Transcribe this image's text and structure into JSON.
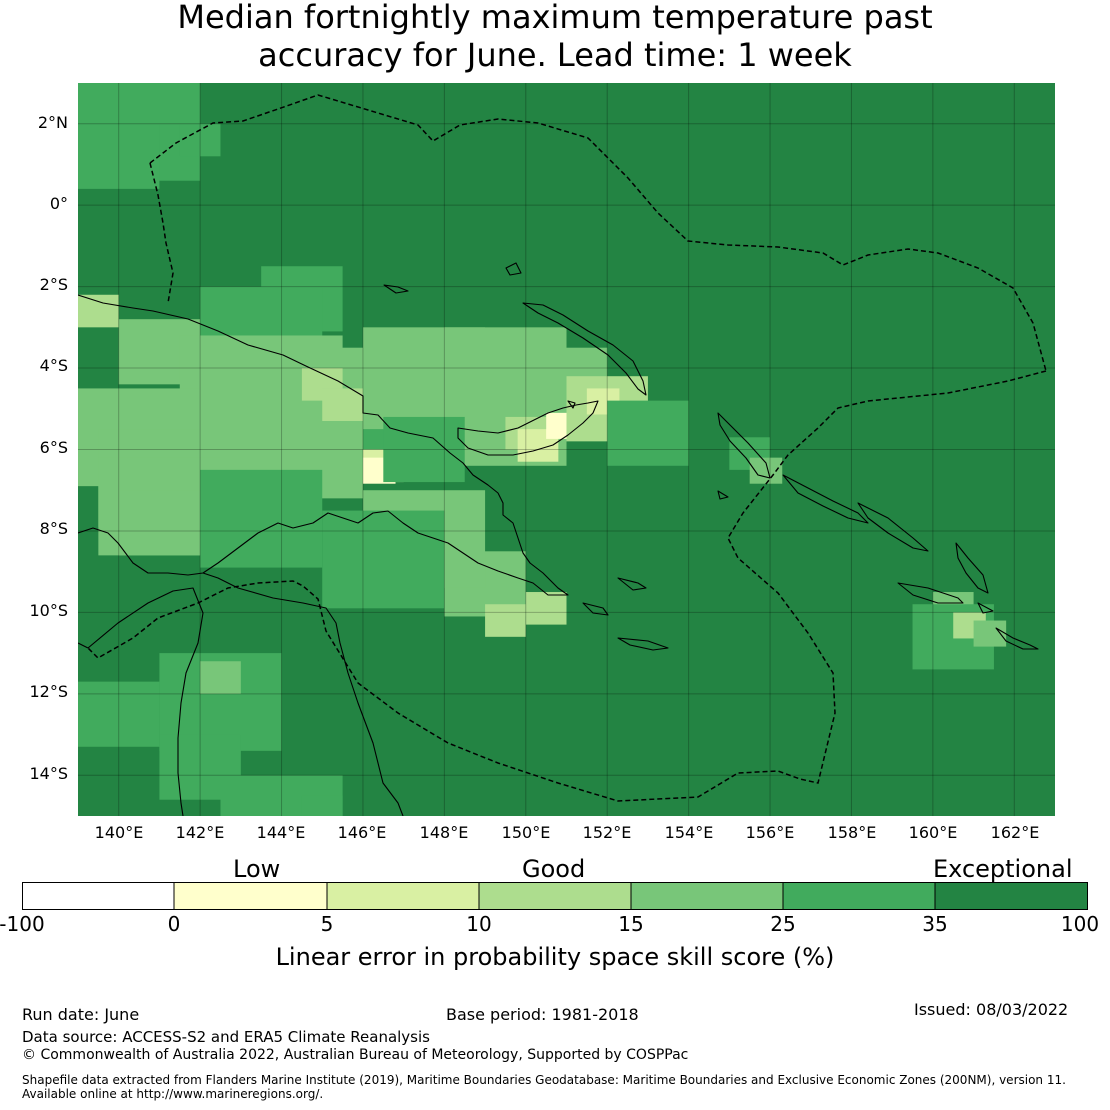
{
  "title": {
    "line1": "Median fortnightly maximum temperature past",
    "line2": "accuracy for June. Lead time: 1 week"
  },
  "map": {
    "lat_labels": [
      "2°N",
      "0°",
      "2°S",
      "4°S",
      "6°S",
      "8°S",
      "10°S",
      "12°S",
      "14°S"
    ],
    "lon_labels": [
      "140°E",
      "142°E",
      "144°E",
      "146°E",
      "148°E",
      "150°E",
      "152°E",
      "154°E",
      "156°E",
      "158°E",
      "160°E",
      "162°E"
    ],
    "extent": {
      "lon_min": 139,
      "lon_max": 163,
      "lat_min": -15,
      "lat_max": 3
    },
    "background_class": "35-100",
    "colors": {
      "-100-0": "#ffffff",
      "0-5": "#ffffcc",
      "5-10": "#d9f0a3",
      "10-15": "#addd8e",
      "15-25": "#78c679",
      "25-35": "#41ab5d",
      "35-100": "#238443"
    }
  },
  "legend": {
    "categories": [
      "Low",
      "Good",
      "Exceptional"
    ],
    "ticks": [
      "-100",
      "0",
      "5",
      "10",
      "15",
      "25",
      "35",
      "100"
    ],
    "label": "Linear error in probability space skill score (%)"
  },
  "footer": {
    "run_date": "Run date: June",
    "base_period": "Base period: 1981-2018",
    "issued": "Issued: 08/03/2022",
    "data_source": "Data source: ACCESS-S2 and ERA5 Climate Reanalysis",
    "copyright": "© Commonwealth of Australia 2022, Australian Bureau of Meteorology, Supported by COSPPac",
    "shapefile_line1": "Shapefile data extracted from Flanders Marine Institute (2019), Maritime Boundaries Geodatabase: Maritime Boundaries and Exclusive Economic Zones (200NM), version 11.",
    "shapefile_line2": "Available online at http://www.marineregions.org/."
  }
}
